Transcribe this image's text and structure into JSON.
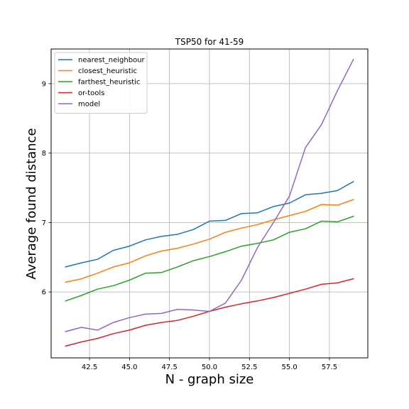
{
  "chart_data": {
    "type": "line",
    "title": "TSP50 for 41-59",
    "xlabel": "N - graph size",
    "ylabel": "Average found distance",
    "x": [
      41,
      42,
      43,
      44,
      45,
      46,
      47,
      48,
      49,
      50,
      51,
      52,
      53,
      54,
      55,
      56,
      57,
      58,
      59
    ],
    "xlim": [
      40.1,
      59.9
    ],
    "ylim": [
      5.05,
      9.5
    ],
    "x_ticks": [
      42.5,
      45.0,
      47.5,
      50.0,
      52.5,
      55.0,
      57.5
    ],
    "x_tick_labels": [
      "42.5",
      "45.0",
      "47.5",
      "50.0",
      "52.5",
      "55.0",
      "57.5"
    ],
    "y_ticks": [
      6,
      7,
      8,
      9
    ],
    "y_tick_labels": [
      "6",
      "7",
      "8",
      "9"
    ],
    "grid": true,
    "legend_position": "upper-left",
    "series": [
      {
        "name": "nearest_neighbour",
        "color": "#1f77b4",
        "values": [
          6.36,
          6.42,
          6.47,
          6.6,
          6.66,
          6.75,
          6.8,
          6.83,
          6.9,
          7.02,
          7.03,
          7.13,
          7.14,
          7.23,
          7.28,
          7.4,
          7.42,
          7.46,
          7.59
        ]
      },
      {
        "name": "closest_heuristic",
        "color": "#ff7f0e",
        "values": [
          6.14,
          6.19,
          6.27,
          6.36,
          6.42,
          6.52,
          6.59,
          6.63,
          6.69,
          6.76,
          6.86,
          6.92,
          6.97,
          7.04,
          7.1,
          7.16,
          7.26,
          7.25,
          7.33
        ]
      },
      {
        "name": "farthest_heuristic",
        "color": "#2ca02c",
        "values": [
          5.87,
          5.95,
          6.04,
          6.09,
          6.17,
          6.27,
          6.28,
          6.36,
          6.45,
          6.51,
          6.58,
          6.66,
          6.7,
          6.75,
          6.86,
          6.91,
          7.02,
          7.01,
          7.09
        ]
      },
      {
        "name": "or-tools",
        "color": "#d62728",
        "values": [
          5.22,
          5.28,
          5.33,
          5.4,
          5.45,
          5.52,
          5.56,
          5.59,
          5.65,
          5.72,
          5.78,
          5.83,
          5.87,
          5.92,
          5.98,
          6.04,
          6.11,
          6.13,
          6.19
        ]
      },
      {
        "name": "model",
        "color": "#9467bd",
        "values": [
          5.43,
          5.49,
          5.45,
          5.56,
          5.63,
          5.68,
          5.69,
          5.75,
          5.74,
          5.72,
          5.84,
          6.17,
          6.64,
          7.0,
          7.38,
          8.08,
          8.41,
          8.9,
          9.35
        ]
      }
    ]
  }
}
